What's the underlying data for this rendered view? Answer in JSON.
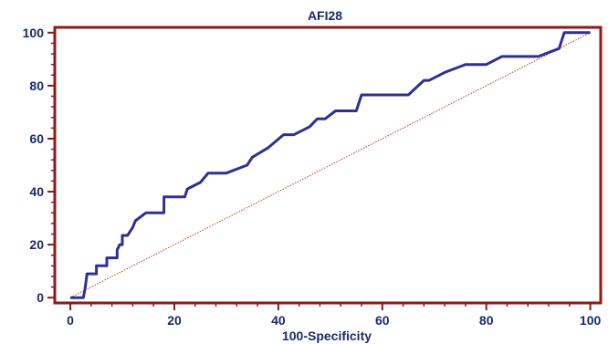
{
  "chart_data": {
    "type": "line",
    "title": "AFI28",
    "xlabel": "100-Specificity",
    "ylabel": "",
    "xlim": [
      -3,
      102
    ],
    "ylim": [
      -2,
      102
    ],
    "x_ticks": [
      0,
      20,
      40,
      60,
      80,
      100
    ],
    "y_ticks": [
      0,
      20,
      40,
      60,
      80,
      100
    ],
    "grid": false,
    "colors": {
      "frame": "#8b1a1a",
      "roc_curve": "#2e3192",
      "reference_line": "#c0392b",
      "text": "#1a2a6c"
    },
    "series": [
      {
        "values": [
          [
            0,
            0
          ],
          [
            2.5,
            0
          ],
          [
            2.8,
            3
          ],
          [
            3.0,
            6
          ],
          [
            3.2,
            9
          ],
          [
            5,
            9
          ],
          [
            5,
            12
          ],
          [
            7,
            12
          ],
          [
            7,
            15
          ],
          [
            9,
            15
          ],
          [
            9,
            18
          ],
          [
            9.5,
            20
          ],
          [
            10,
            20
          ],
          [
            10,
            23.5
          ],
          [
            11,
            23.5
          ],
          [
            12,
            26.5
          ],
          [
            12.5,
            29
          ],
          [
            14.5,
            32
          ],
          [
            18,
            32
          ],
          [
            18,
            38
          ],
          [
            22,
            38
          ],
          [
            22.5,
            41
          ],
          [
            25,
            43.5
          ],
          [
            26.5,
            47
          ],
          [
            30,
            47
          ],
          [
            34,
            50
          ],
          [
            35,
            53
          ],
          [
            38,
            56.5
          ],
          [
            41,
            61.5
          ],
          [
            43,
            61.5
          ],
          [
            46,
            64.5
          ],
          [
            47.5,
            67.5
          ],
          [
            49,
            67.5
          ],
          [
            51,
            70.5
          ],
          [
            55,
            70.5
          ],
          [
            56,
            76.5
          ],
          [
            65,
            76.5
          ],
          [
            68,
            82
          ],
          [
            69,
            82
          ],
          [
            72,
            85
          ],
          [
            76,
            88
          ],
          [
            80,
            88
          ],
          [
            83,
            91
          ],
          [
            90,
            91
          ],
          [
            94,
            94
          ],
          [
            95,
            100
          ],
          [
            100,
            100
          ]
        ]
      },
      {
        "values": [
          [
            0,
            0
          ],
          [
            100,
            100
          ]
        ]
      }
    ]
  }
}
